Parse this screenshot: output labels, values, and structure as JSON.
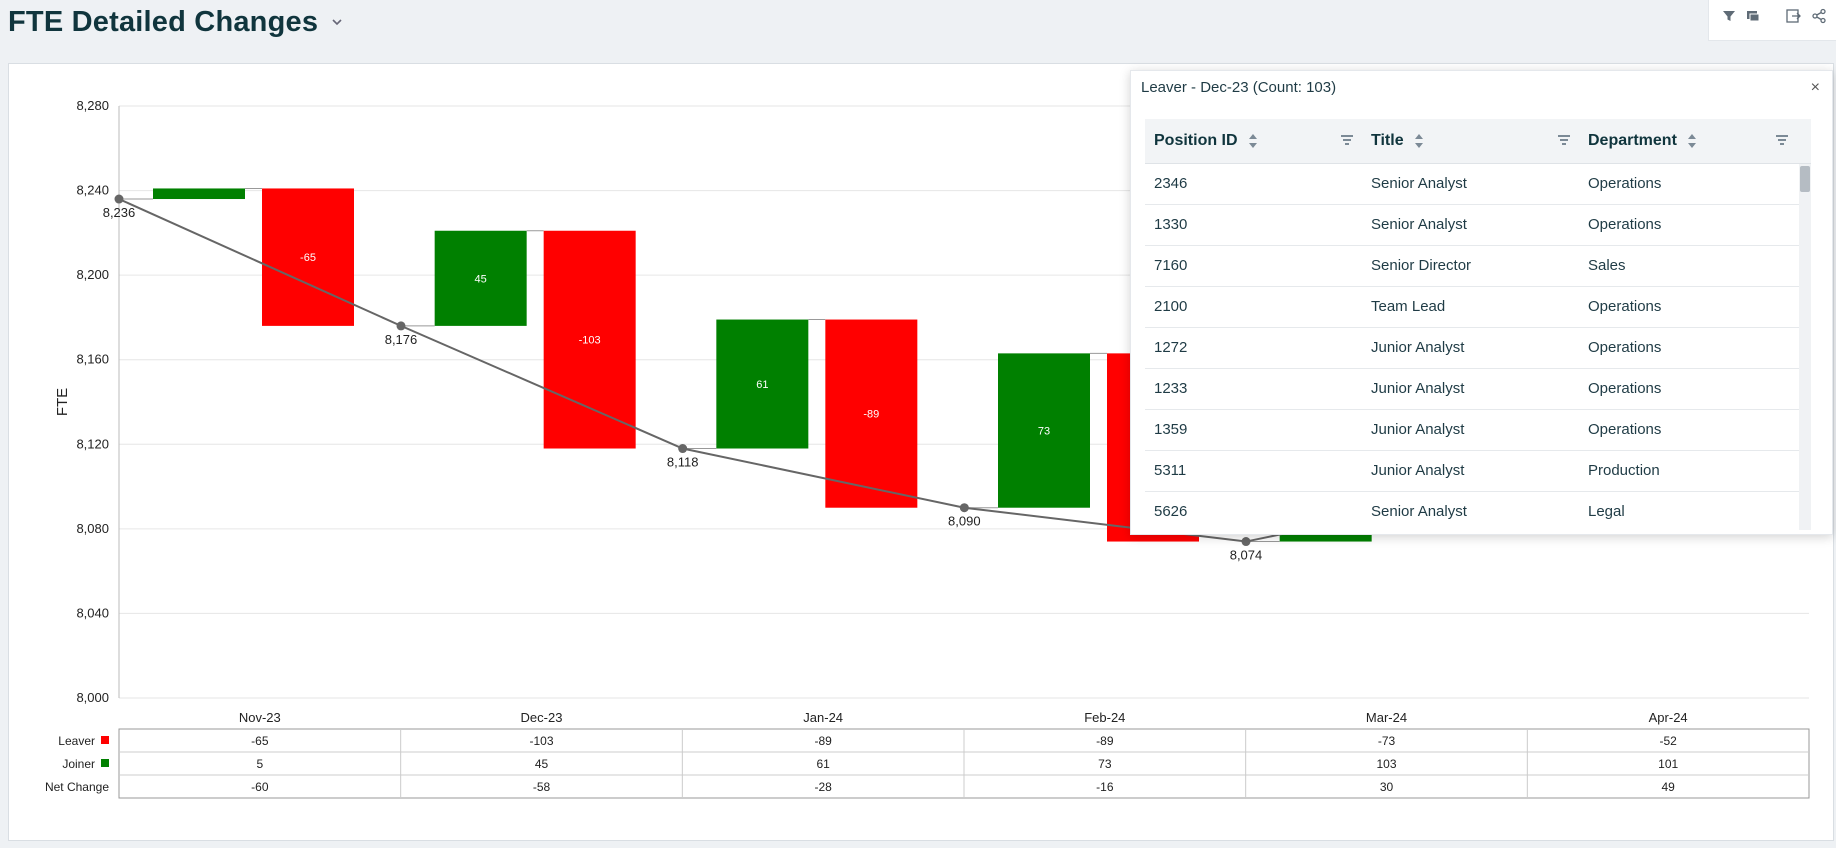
{
  "header": {
    "title": "FTE Detailed Changes"
  },
  "toolbar": {
    "icons": [
      "filter-icon",
      "comment-icon",
      "export-icon",
      "share-icon"
    ]
  },
  "colors": {
    "leaver": "#ff0000",
    "joiner": "#008000",
    "line": "#666666",
    "title": "#10353d"
  },
  "chart_data": {
    "type": "bar",
    "subtype": "waterfall",
    "ylabel": "FTE",
    "xlabel": "",
    "ylim": [
      8000,
      8280
    ],
    "yticks": [
      8000,
      8040,
      8080,
      8120,
      8160,
      8200,
      8240,
      8280
    ],
    "ytick_labels": [
      "8,000",
      "8,040",
      "8,080",
      "8,120",
      "8,160",
      "8,200",
      "8,240",
      "8,280"
    ],
    "categories": [
      "Nov-23",
      "Dec-23",
      "Jan-24",
      "Feb-24",
      "Mar-24",
      "Apr-24"
    ],
    "series": [
      {
        "name": "Leaver",
        "values": [
          -65,
          -103,
          -89,
          -89,
          -73,
          -52
        ]
      },
      {
        "name": "Joiner",
        "values": [
          5,
          45,
          61,
          73,
          103,
          101
        ]
      },
      {
        "name": "Net Change",
        "values": [
          -60,
          -58,
          -28,
          -16,
          30,
          49
        ]
      }
    ],
    "running_totals": [
      8236,
      8176,
      8118,
      8090,
      8074
    ],
    "running_total_labels": [
      "8,236",
      "8,176",
      "8,118",
      "8,090",
      "8,074"
    ],
    "bar_labels": {
      "leaver": [
        "-65",
        "-103",
        "-89",
        "",
        "",
        ""
      ],
      "joiner": [
        "",
        "45",
        "61",
        "73",
        "",
        ""
      ]
    },
    "table_rows": [
      {
        "label": "Leaver",
        "values": [
          "-65",
          "-103",
          "-89",
          "-89",
          "-73",
          "-52"
        ]
      },
      {
        "label": "Joiner",
        "values": [
          "5",
          "45",
          "61",
          "73",
          "103",
          "101"
        ]
      },
      {
        "label": "Net Change",
        "values": [
          "-60",
          "-58",
          "-28",
          "-16",
          "30",
          "49"
        ]
      }
    ],
    "grid": true
  },
  "popup": {
    "title": "Leaver - Dec-23 (Count: 103)",
    "close": "×",
    "columns": [
      "Position ID",
      "Title",
      "Department"
    ],
    "rows": [
      [
        "2346",
        "Senior Analyst",
        "Operations"
      ],
      [
        "1330",
        "Senior Analyst",
        "Operations"
      ],
      [
        "7160",
        "Senior Director",
        "Sales"
      ],
      [
        "2100",
        "Team Lead",
        "Operations"
      ],
      [
        "1272",
        "Junior Analyst",
        "Operations"
      ],
      [
        "1233",
        "Junior Analyst",
        "Operations"
      ],
      [
        "1359",
        "Junior Analyst",
        "Operations"
      ],
      [
        "5311",
        "Junior Analyst",
        "Production"
      ],
      [
        "5626",
        "Senior Analyst",
        "Legal"
      ]
    ]
  }
}
